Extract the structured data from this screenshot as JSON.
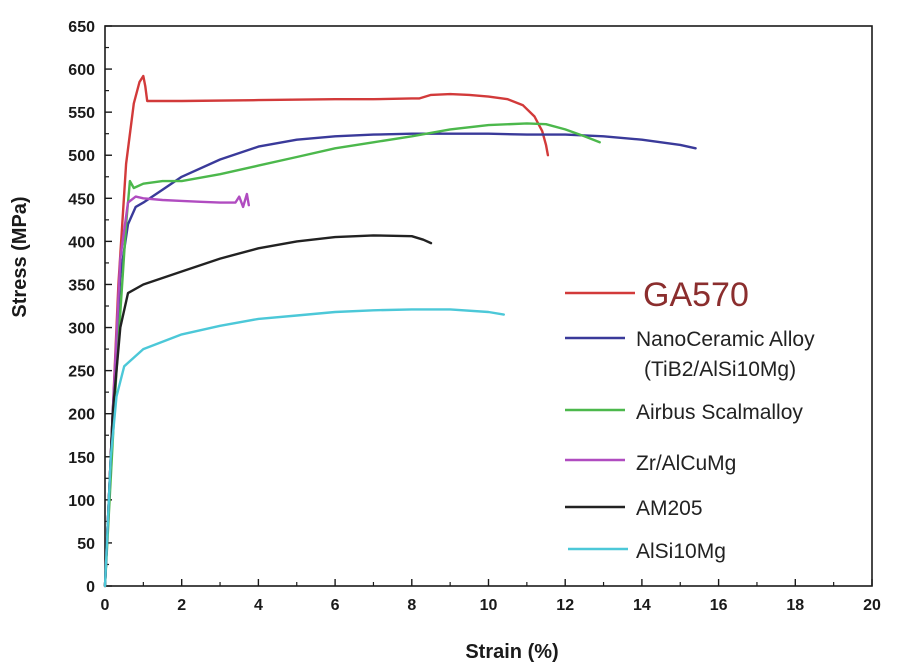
{
  "chart_data": {
    "type": "line",
    "title": "",
    "xlabel": "Strain (%)",
    "ylabel": "Stress (MPa)",
    "xlim": [
      0,
      20
    ],
    "ylim": [
      0,
      650
    ],
    "xticks": [
      0,
      2,
      4,
      6,
      8,
      10,
      12,
      14,
      16,
      18,
      20
    ],
    "yticks": [
      0,
      50,
      100,
      150,
      200,
      250,
      300,
      350,
      400,
      450,
      500,
      550,
      600,
      650
    ],
    "grid": false,
    "legend_position": "bottom-right",
    "series": [
      {
        "name": "GA570",
        "color": "#d23a3a",
        "points": [
          [
            0,
            0
          ],
          [
            0.15,
            150
          ],
          [
            0.35,
            350
          ],
          [
            0.55,
            490
          ],
          [
            0.75,
            560
          ],
          [
            0.9,
            585
          ],
          [
            1.0,
            592
          ],
          [
            1.05,
            580
          ],
          [
            1.1,
            563
          ],
          [
            2,
            563
          ],
          [
            4,
            564
          ],
          [
            6,
            565
          ],
          [
            7,
            565
          ],
          [
            8,
            566
          ],
          [
            8.2,
            566
          ],
          [
            8.5,
            570
          ],
          [
            9.0,
            571
          ],
          [
            9.5,
            570
          ],
          [
            10.0,
            568
          ],
          [
            10.5,
            565
          ],
          [
            10.9,
            558
          ],
          [
            11.2,
            545
          ],
          [
            11.4,
            528
          ],
          [
            11.5,
            512
          ],
          [
            11.55,
            500
          ]
        ]
      },
      {
        "name": "NanoCeramic Alloy (TiB2/AlSi10Mg)",
        "color": "#3a3a9a",
        "points": [
          [
            0,
            0
          ],
          [
            0.2,
            200
          ],
          [
            0.4,
            360
          ],
          [
            0.6,
            420
          ],
          [
            0.8,
            440
          ],
          [
            1,
            445
          ],
          [
            1.5,
            460
          ],
          [
            2,
            475
          ],
          [
            3,
            495
          ],
          [
            4,
            510
          ],
          [
            5,
            518
          ],
          [
            6,
            522
          ],
          [
            7,
            524
          ],
          [
            8,
            525
          ],
          [
            9,
            525
          ],
          [
            10,
            525
          ],
          [
            11,
            524
          ],
          [
            12,
            524
          ],
          [
            13,
            522
          ],
          [
            14,
            518
          ],
          [
            15,
            512
          ],
          [
            15.4,
            508
          ]
        ]
      },
      {
        "name": "Airbus Scalmalloy",
        "color": "#4cb84c",
        "points": [
          [
            0,
            0
          ],
          [
            0.3,
            250
          ],
          [
            0.55,
            420
          ],
          [
            0.65,
            470
          ],
          [
            0.75,
            462
          ],
          [
            1,
            467
          ],
          [
            1.5,
            470
          ],
          [
            2,
            470
          ],
          [
            3,
            478
          ],
          [
            4,
            488
          ],
          [
            5,
            498
          ],
          [
            6,
            508
          ],
          [
            7,
            515
          ],
          [
            8,
            522
          ],
          [
            9,
            530
          ],
          [
            10,
            535
          ],
          [
            11,
            537
          ],
          [
            11.5,
            536
          ],
          [
            12,
            530
          ],
          [
            12.5,
            522
          ],
          [
            12.9,
            515
          ]
        ]
      },
      {
        "name": "Zr/AlCuMg",
        "color": "#b04cc0",
        "points": [
          [
            0,
            0
          ],
          [
            0.2,
            200
          ],
          [
            0.4,
            380
          ],
          [
            0.6,
            445
          ],
          [
            0.8,
            452
          ],
          [
            1,
            450
          ],
          [
            1.5,
            448
          ],
          [
            2,
            447
          ],
          [
            2.5,
            446
          ],
          [
            3,
            445
          ],
          [
            3.4,
            445
          ],
          [
            3.5,
            452
          ],
          [
            3.6,
            440
          ],
          [
            3.7,
            455
          ],
          [
            3.75,
            442
          ]
        ]
      },
      {
        "name": "AM205",
        "color": "#222222",
        "points": [
          [
            0,
            0
          ],
          [
            0.2,
            200
          ],
          [
            0.4,
            300
          ],
          [
            0.6,
            340
          ],
          [
            1,
            350
          ],
          [
            2,
            365
          ],
          [
            3,
            380
          ],
          [
            4,
            392
          ],
          [
            5,
            400
          ],
          [
            6,
            405
          ],
          [
            7,
            407
          ],
          [
            8,
            406
          ],
          [
            8.3,
            402
          ],
          [
            8.5,
            398
          ]
        ]
      },
      {
        "name": "AlSi10Mg",
        "color": "#4cc8d8",
        "points": [
          [
            0,
            0
          ],
          [
            0.15,
            150
          ],
          [
            0.3,
            220
          ],
          [
            0.5,
            255
          ],
          [
            1,
            275
          ],
          [
            2,
            292
          ],
          [
            3,
            302
          ],
          [
            4,
            310
          ],
          [
            5,
            314
          ],
          [
            6,
            318
          ],
          [
            7,
            320
          ],
          [
            8,
            321
          ],
          [
            9,
            321
          ],
          [
            10,
            318
          ],
          [
            10.4,
            315
          ]
        ]
      }
    ]
  }
}
